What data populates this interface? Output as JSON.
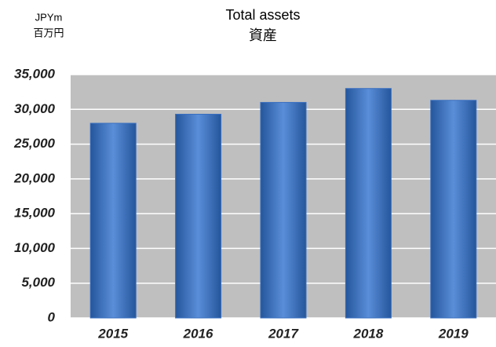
{
  "chart_data": {
    "type": "bar",
    "title": "Total assets",
    "subtitle": "資産",
    "y_label": [
      "JPYm",
      "百万円"
    ],
    "categories": [
      "2015",
      "2016",
      "2017",
      "2018",
      "2019"
    ],
    "values": [
      28000,
      29300,
      31000,
      33000,
      31300
    ],
    "color": "#3a6fc0",
    "ylim": [
      0,
      35000
    ],
    "yticks": [
      0,
      {
        "value": 5000,
        "label": "5,000"
      },
      {
        "value": 10000,
        "label": "10,000"
      },
      {
        "value": 15000,
        "label": "15,000"
      },
      {
        "value": 20000,
        "label": "20,000"
      },
      {
        "value": 25000,
        "label": "25,000"
      },
      {
        "value": 30000,
        "label": "30,000"
      },
      {
        "value": 35000,
        "label": "35,000"
      }
    ],
    "grid": true
  }
}
